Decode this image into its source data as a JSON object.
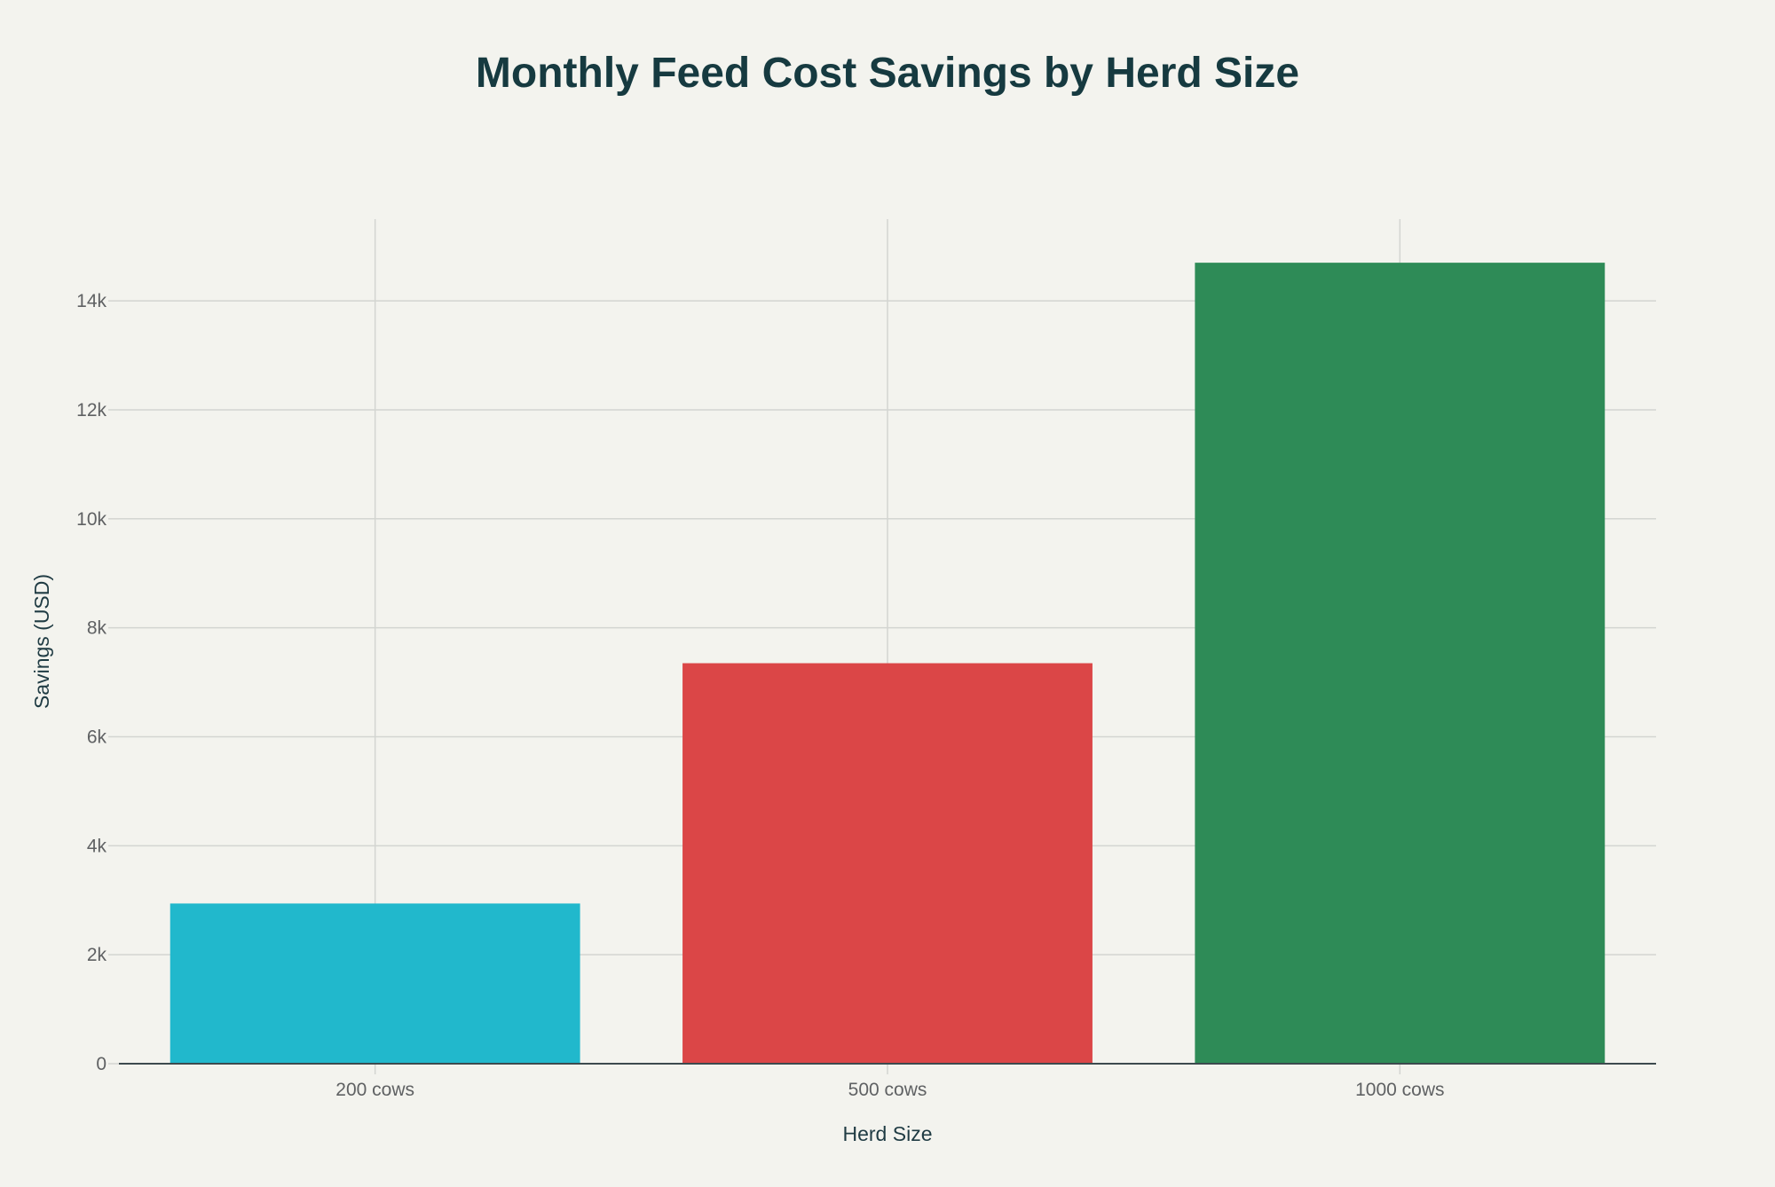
{
  "chart_data": {
    "type": "bar",
    "title": "Monthly Feed Cost Savings by Herd Size",
    "xlabel": "Herd Size",
    "ylabel": "Savings (USD)",
    "categories": [
      "200 cows",
      "500 cows",
      "1000 cows"
    ],
    "values": [
      2940,
      7350,
      14700
    ],
    "colors": [
      "#21b8cc",
      "#db4647",
      "#2e8b57"
    ],
    "ylim": [
      0,
      15500
    ],
    "yticks": [
      0,
      2000,
      4000,
      6000,
      8000,
      10000,
      12000,
      14000
    ],
    "ytick_labels": [
      "0",
      "2k",
      "4k",
      "6k",
      "8k",
      "10k",
      "12k",
      "14k"
    ],
    "grid": true,
    "legend": "none"
  }
}
